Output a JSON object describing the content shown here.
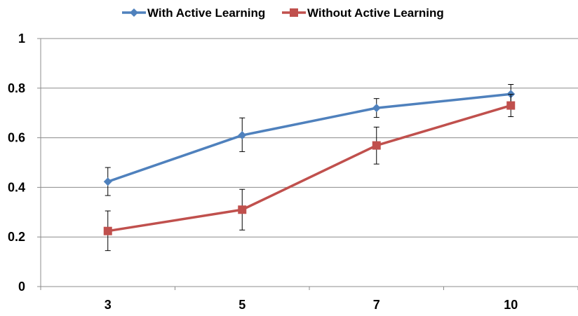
{
  "chart_data": {
    "type": "line",
    "title": "",
    "xlabel": "",
    "ylabel": "",
    "categories": [
      "3",
      "5",
      "7",
      "10"
    ],
    "ylim": [
      0,
      1
    ],
    "yticks": [
      "0",
      "0.2",
      "0.4",
      "0.6",
      "0.8",
      "1"
    ],
    "grid": true,
    "legend_position": "top",
    "series": [
      {
        "name": "With Active Learning",
        "color": "#4F81BD",
        "marker": "diamond",
        "values": [
          0.423,
          0.61,
          0.72,
          0.776
        ],
        "error_low": [
          0.367,
          0.544,
          0.682,
          0.736
        ],
        "error_high": [
          0.48,
          0.68,
          0.758,
          0.815
        ]
      },
      {
        "name": "Without Active Learning",
        "color": "#C0504D",
        "marker": "square",
        "values": [
          0.224,
          0.31,
          0.569,
          0.73
        ],
        "error_low": [
          0.145,
          0.228,
          0.494,
          0.685
        ],
        "error_high": [
          0.305,
          0.392,
          0.643,
          0.775
        ]
      }
    ]
  }
}
